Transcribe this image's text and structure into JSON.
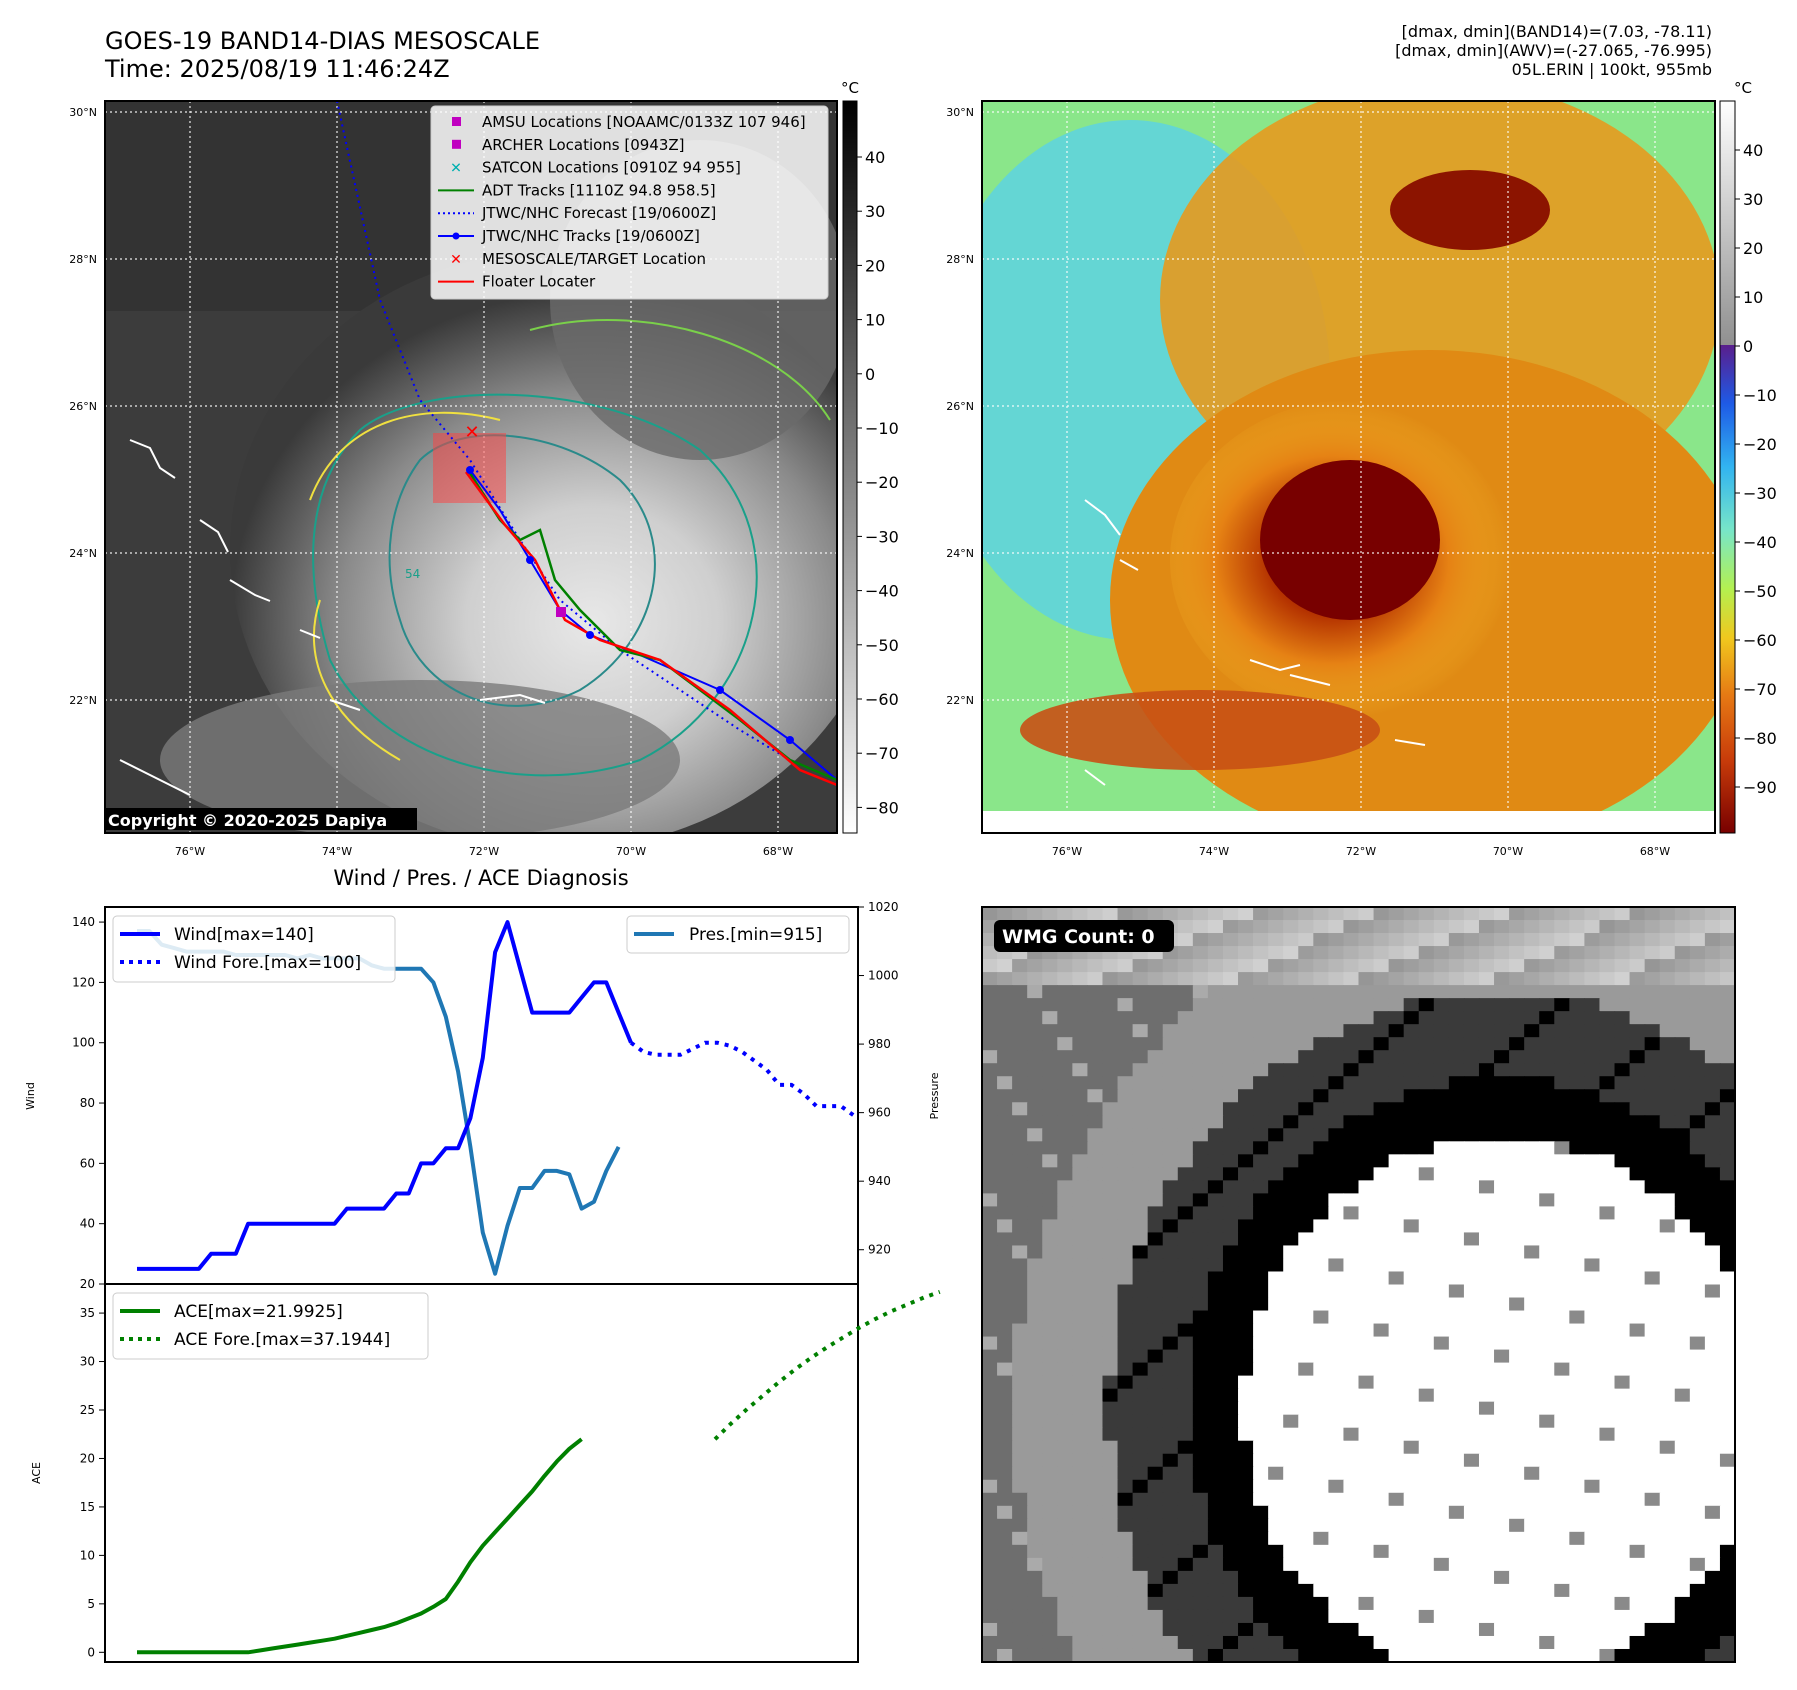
{
  "header": {
    "title_line1": "GOES-19 BAND14-DIAS MESOSCALE",
    "title_line2": "Time: 2025/08/19 11:46:24Z",
    "right_line1": "[dmax, dmin](BAND14)=(7.03, -78.11)",
    "right_line2": "[dmax, dmin](AWV)=(-27.065, -76.995)",
    "right_line3": "05L.ERIN | 100kt, 955mb"
  },
  "maps": {
    "lat_labels": [
      "30°N",
      "28°N",
      "26°N",
      "24°N",
      "22°N"
    ],
    "lon_labels": [
      "76°W",
      "74°W",
      "72°W",
      "70°W",
      "68°W"
    ],
    "copyright": "Copyright © 2020-2025 Dapiya",
    "colorbar_unit": "°C",
    "left_colorbar_ticks": [
      "40",
      "30",
      "20",
      "10",
      "0",
      "−10",
      "−20",
      "−30",
      "−40",
      "−50",
      "−60",
      "−70",
      "−80"
    ],
    "right_colorbar_ticks": [
      "40",
      "30",
      "20",
      "10",
      "0",
      "−10",
      "−20",
      "−30",
      "−40",
      "−50",
      "−60",
      "−70",
      "−80",
      "−90"
    ],
    "contour_label": "54",
    "legend": [
      {
        "label": "AMSU Locations [NOAAMC/0133Z 107 946]",
        "color": "#c000c0",
        "marker": "square"
      },
      {
        "label": "ARCHER Locations [0943Z]",
        "color": "#c000c0",
        "marker": "square"
      },
      {
        "label": "SATCON Locations [0910Z 94 955]",
        "color": "#00b0b0",
        "marker": "x"
      },
      {
        "label": "ADT Tracks [1110Z 94.8 958.5]",
        "color": "#008000",
        "marker": "line"
      },
      {
        "label": "JTWC/NHC Forecast [19/0600Z]",
        "color": "#0000ff",
        "marker": "dotted"
      },
      {
        "label": "JTWC/NHC Tracks [19/0600Z]",
        "color": "#0000ff",
        "marker": "line-dot"
      },
      {
        "label": "MESOSCALE/TARGET Location",
        "color": "#ff0000",
        "marker": "x"
      },
      {
        "label": "Floater Locater",
        "color": "#ff0000",
        "marker": "line"
      }
    ]
  },
  "wmg": {
    "label": "WMG Count: 0"
  },
  "chart_data": [
    {
      "type": "line",
      "title": "Wind / Pres. / ACE Diagnosis",
      "ylabel": "Wind",
      "ylim": [
        20,
        145
      ],
      "y_ticks": [
        20,
        40,
        60,
        80,
        100,
        120,
        140
      ],
      "y2label": "Pressure",
      "y2lim": [
        910,
        1020
      ],
      "y2_ticks": [
        920,
        940,
        960,
        980,
        1000,
        1020
      ],
      "legend_left": [
        "Wind[max=140]",
        "Wind Fore.[max=100]"
      ],
      "legend_right": [
        "Pres.[min=915]"
      ],
      "series": [
        {
          "name": "Wind[max=140]",
          "color": "#0000ff",
          "style": "solid",
          "values": [
            25,
            25,
            25,
            25,
            25,
            25,
            30,
            30,
            30,
            40,
            40,
            40,
            40,
            40,
            40,
            40,
            40,
            45,
            45,
            45,
            45,
            50,
            50,
            60,
            60,
            65,
            65,
            75,
            95,
            130,
            140,
            125,
            110,
            110,
            110,
            110,
            115,
            120,
            120,
            110,
            100
          ]
        },
        {
          "name": "Wind Fore.[max=100]",
          "color": "#0000ff",
          "style": "dotted",
          "values": [
            100,
            97,
            96,
            96,
            96,
            98,
            100,
            100,
            99,
            97,
            94,
            91,
            86,
            86,
            83,
            79,
            79,
            79,
            76
          ]
        },
        {
          "name": "Pres.[min=915]",
          "color": "#1f77b4",
          "style": "solid",
          "values": [
            1013,
            1013,
            1009,
            1008,
            1007,
            1007,
            1007,
            1007,
            1006,
            1006,
            1006,
            1006,
            1006,
            1005,
            1006,
            1005,
            1005,
            1005,
            1005,
            1003,
            1002,
            1002,
            1002,
            1002,
            998,
            988,
            972,
            950,
            925,
            913,
            927,
            938,
            938,
            943,
            943,
            942,
            932,
            934,
            943,
            950
          ]
        }
      ]
    },
    {
      "type": "line",
      "ylabel": "ACE",
      "ylim": [
        -1,
        38
      ],
      "y_ticks": [
        0,
        5,
        10,
        15,
        20,
        25,
        30,
        35
      ],
      "legend": [
        "ACE[max=21.9925]",
        "ACE Fore.[max=37.1944]"
      ],
      "series": [
        {
          "name": "ACE[max=21.9925]",
          "color": "#008000",
          "style": "solid",
          "values": [
            0,
            0,
            0,
            0,
            0,
            0,
            0,
            0,
            0,
            0,
            0.2,
            0.4,
            0.6,
            0.8,
            1.0,
            1.2,
            1.4,
            1.7,
            2.0,
            2.3,
            2.6,
            3.0,
            3.5,
            4.0,
            4.7,
            5.5,
            7.3,
            9.3,
            11.0,
            12.4,
            13.8,
            15.2,
            16.6,
            18.2,
            19.7,
            21.0,
            21.99
          ]
        },
        {
          "name": "ACE Fore.[max=37.1944]",
          "color": "#008000",
          "style": "dotted",
          "values": [
            21.99,
            23.6,
            25.1,
            26.5,
            27.9,
            29.2,
            30.4,
            31.5,
            32.5,
            33.5,
            34.4,
            35.2,
            35.9,
            36.6,
            37.19
          ]
        }
      ]
    }
  ]
}
